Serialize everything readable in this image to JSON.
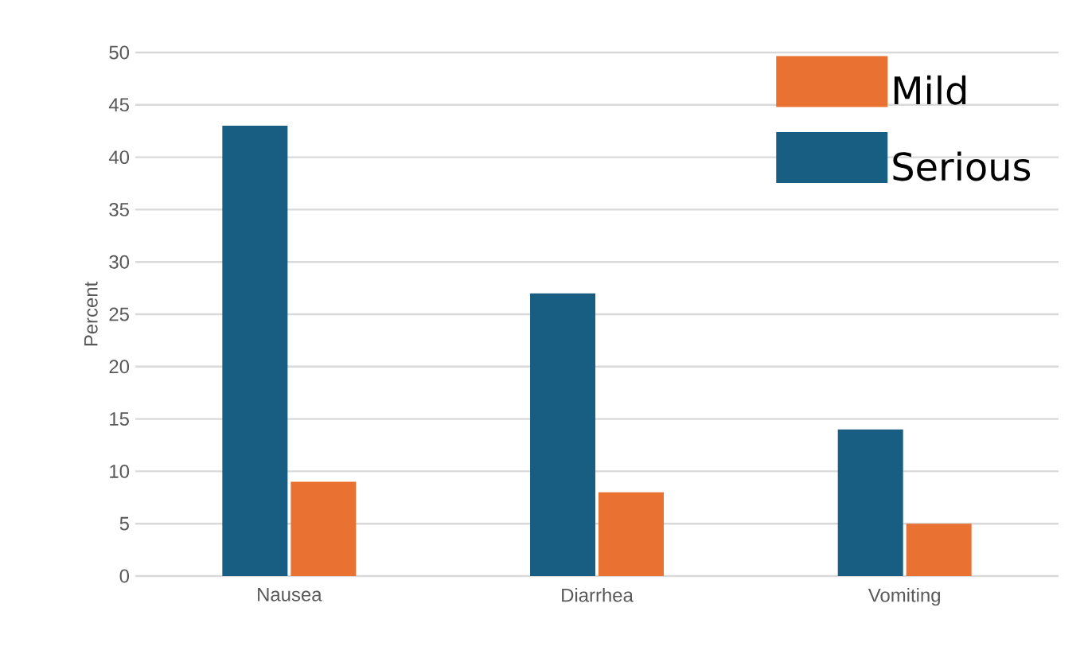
{
  "chart_data": {
    "type": "bar",
    "ylabel": "Percent",
    "categories": [
      "Nausea",
      "Diarrhea",
      "Vomiting"
    ],
    "series": [
      {
        "name": "Serious",
        "color": "#175e82",
        "values": [
          43,
          27,
          14
        ]
      },
      {
        "name": "Mild",
        "color": "#e97132",
        "values": [
          9,
          8,
          5
        ]
      }
    ],
    "ylim": [
      0,
      50
    ],
    "yticks": [
      0,
      5,
      10,
      15,
      20,
      25,
      30,
      35,
      40,
      45,
      50
    ],
    "grid": "y",
    "legend": "top right"
  }
}
